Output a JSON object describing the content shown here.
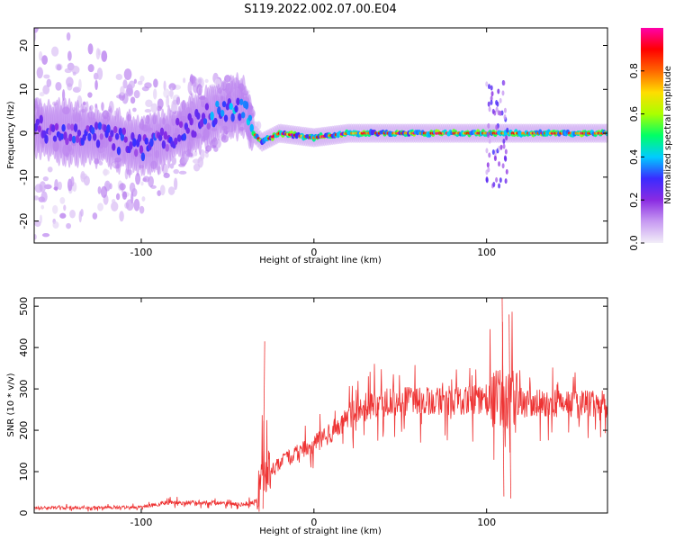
{
  "title": "S119.2022.002.07.00.E04",
  "colors": {
    "snr_line": "#ee3333",
    "colormap": [
      "#f2eef8",
      "#c79af2",
      "#8a2be2",
      "#3a2bff",
      "#00ccff",
      "#00ff66",
      "#aaff00",
      "#ffdd00",
      "#ff6600",
      "#ff0000",
      "#ff00aa"
    ]
  },
  "chart_data": [
    {
      "type": "heatmap",
      "xlabel": "Height of straight line (km)",
      "ylabel": "Frequency (Hz)",
      "xlim": [
        -162,
        170
      ],
      "ylim": [
        -25,
        24
      ],
      "xticks": [
        -100,
        0,
        100
      ],
      "xtick_labels": [
        "-100",
        "0",
        "100"
      ],
      "yticks": [
        -20,
        -10,
        0,
        10,
        20
      ],
      "ytick_labels": [
        "-20",
        "-10",
        "0",
        "10",
        "20"
      ],
      "colorbar": {
        "label": "Normalized spectral amplitude",
        "range": [
          0,
          1
        ],
        "ticks": [
          0.0,
          0.2,
          0.4,
          0.6,
          0.8
        ],
        "tick_labels": [
          "0.0",
          "0.2",
          "0.4",
          "0.6",
          "0.8"
        ]
      },
      "ridge": [
        {
          "x": -160,
          "f": 1
        },
        {
          "x": -140,
          "f": 0
        },
        {
          "x": -120,
          "f": -1
        },
        {
          "x": -100,
          "f": -3
        },
        {
          "x": -90,
          "f": -2
        },
        {
          "x": -80,
          "f": 0
        },
        {
          "x": -70,
          "f": 2
        },
        {
          "x": -60,
          "f": 4
        },
        {
          "x": -48,
          "f": 6
        },
        {
          "x": -40,
          "f": 6
        },
        {
          "x": -35,
          "f": 0
        },
        {
          "x": -30,
          "f": -2
        },
        {
          "x": -20,
          "f": 0
        },
        {
          "x": 0,
          "f": -1
        },
        {
          "x": 20,
          "f": 0
        },
        {
          "x": 60,
          "f": 0
        },
        {
          "x": 100,
          "f": 0
        },
        {
          "x": 110,
          "f": 0
        },
        {
          "x": 170,
          "f": 0
        }
      ],
      "grid": false,
      "legend": false
    },
    {
      "type": "line",
      "xlabel": "Height of straight line (km)",
      "ylabel": "SNR (10 * v/v)",
      "xlim": [
        -162,
        170
      ],
      "ylim": [
        0,
        520
      ],
      "xticks": [
        -100,
        0,
        100
      ],
      "xtick_labels": [
        "-100",
        "0",
        "100"
      ],
      "yticks": [
        0,
        100,
        200,
        300,
        400,
        500
      ],
      "ytick_labels": [
        "0",
        "100",
        "200",
        "300",
        "400",
        "500"
      ],
      "envelope": [
        {
          "x": -162,
          "snr": 12
        },
        {
          "x": -100,
          "snr": 14
        },
        {
          "x": -85,
          "snr": 25
        },
        {
          "x": -60,
          "snr": 25
        },
        {
          "x": -40,
          "snr": 20
        },
        {
          "x": -33,
          "snr": 30
        },
        {
          "x": -30,
          "snr": 90
        },
        {
          "x": -20,
          "snr": 120
        },
        {
          "x": -10,
          "snr": 145
        },
        {
          "x": 0,
          "snr": 165
        },
        {
          "x": 10,
          "snr": 195
        },
        {
          "x": 20,
          "snr": 235
        },
        {
          "x": 30,
          "snr": 258
        },
        {
          "x": 40,
          "snr": 268
        },
        {
          "x": 60,
          "snr": 270
        },
        {
          "x": 80,
          "snr": 272
        },
        {
          "x": 100,
          "snr": 275
        },
        {
          "x": 120,
          "snr": 265
        },
        {
          "x": 170,
          "snr": 262
        }
      ],
      "spikes": [
        {
          "x": -28.5,
          "snr": 415
        },
        {
          "x": -29.5,
          "snr": 10
        },
        {
          "x": 109,
          "snr": 520
        },
        {
          "x": 110,
          "snr": 40
        },
        {
          "x": 113,
          "snr": 480
        },
        {
          "x": 114,
          "snr": 35
        }
      ],
      "grid": false,
      "legend": false
    }
  ]
}
